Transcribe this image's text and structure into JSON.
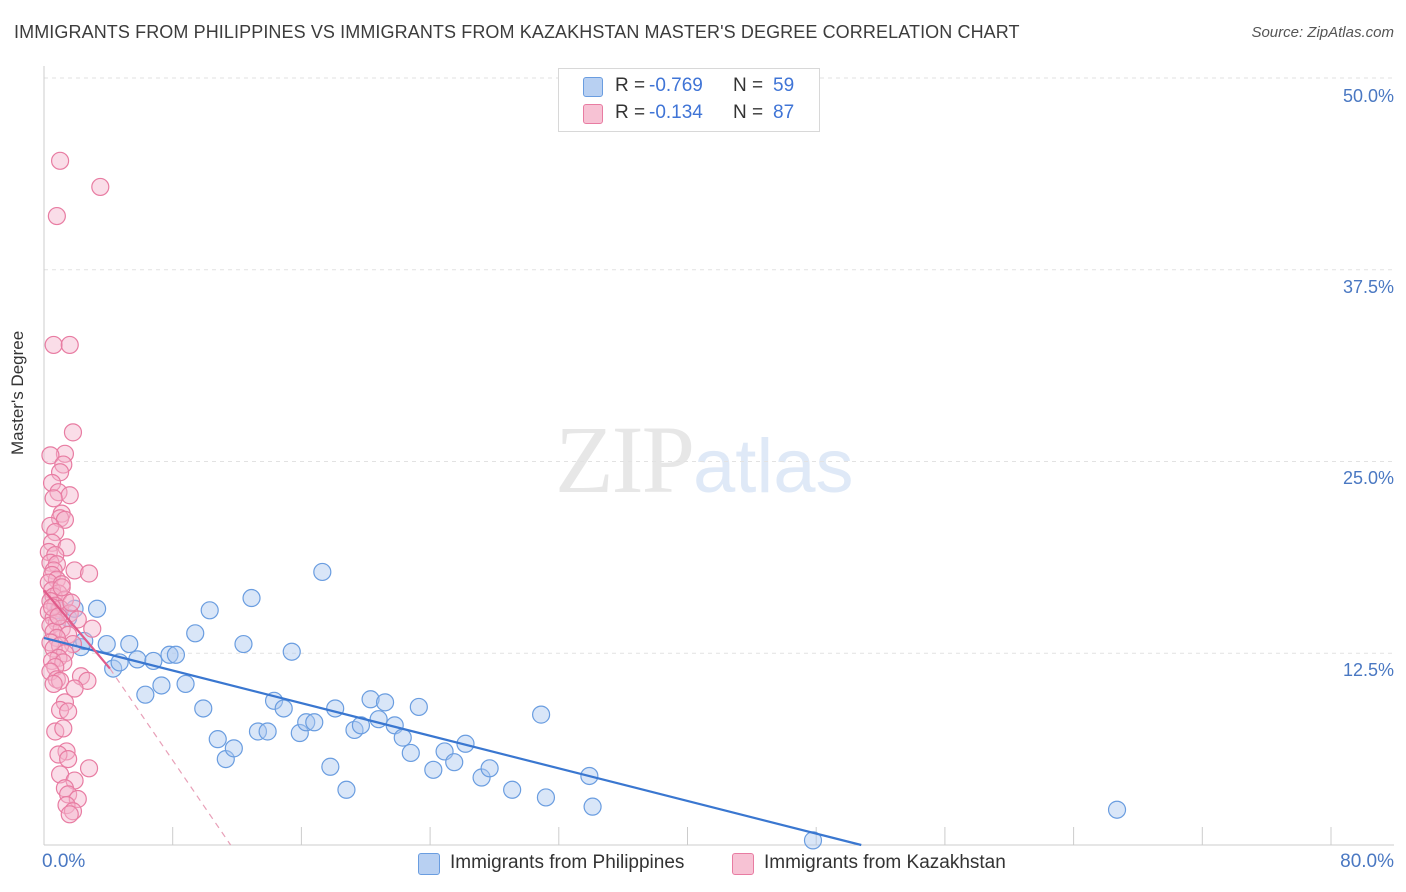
{
  "chart_data": {
    "type": "scatter",
    "title": "IMMIGRANTS FROM PHILIPPINES VS IMMIGRANTS FROM KAZAKHSTAN MASTER'S DEGREE CORRELATION CHART",
    "source": "Source: ZipAtlas.com",
    "xlabel": "",
    "ylabel": "Master's Degree",
    "xlim": [
      0,
      80
    ],
    "ylim": [
      0,
      50
    ],
    "x_tick_labels": [
      "0.0%",
      "80.0%"
    ],
    "y_ticks": [
      12.5,
      25.0,
      37.5,
      50.0
    ],
    "y_tick_labels": [
      "12.5%",
      "25.0%",
      "37.5%",
      "50.0%"
    ],
    "grid": true,
    "watermark": {
      "zip": "ZIP",
      "atlas": "atlas"
    },
    "legend": {
      "r_label": "R =",
      "n_label": "N =",
      "entries": [
        {
          "name": "Immigrants from Philippines",
          "r": "-0.769",
          "n": "59",
          "color": "#6a9de0",
          "fill": "#b8d0f2"
        },
        {
          "name": "Immigrants from Kazakhstan",
          "r": "-0.134",
          "n": "87",
          "color": "#e87ca2",
          "fill": "#f7c2d4"
        }
      ]
    },
    "series": [
      {
        "name": "Immigrants from Philippines",
        "color": "#6a9de0",
        "trend": {
          "x": [
            0.0,
            50.8
          ],
          "y": [
            13.5,
            0.0
          ],
          "color": "#3a77d0"
        },
        "points": [
          [
            0.9,
            15.3
          ],
          [
            1.5,
            14.8
          ],
          [
            1.9,
            15.4
          ],
          [
            2.3,
            12.9
          ],
          [
            3.3,
            15.4
          ],
          [
            3.9,
            13.1
          ],
          [
            4.3,
            11.5
          ],
          [
            4.7,
            11.9
          ],
          [
            5.3,
            13.1
          ],
          [
            5.8,
            12.1
          ],
          [
            6.3,
            9.8
          ],
          [
            6.8,
            12.0
          ],
          [
            7.3,
            10.4
          ],
          [
            7.8,
            12.4
          ],
          [
            8.2,
            12.4
          ],
          [
            8.8,
            10.5
          ],
          [
            9.4,
            13.8
          ],
          [
            9.9,
            8.9
          ],
          [
            10.3,
            15.3
          ],
          [
            10.8,
            6.9
          ],
          [
            11.3,
            5.6
          ],
          [
            11.8,
            6.3
          ],
          [
            12.4,
            13.1
          ],
          [
            12.9,
            16.1
          ],
          [
            13.3,
            7.4
          ],
          [
            13.9,
            7.4
          ],
          [
            14.3,
            9.4
          ],
          [
            14.9,
            8.9
          ],
          [
            15.4,
            12.6
          ],
          [
            15.9,
            7.3
          ],
          [
            16.3,
            8.0
          ],
          [
            16.8,
            8.0
          ],
          [
            17.3,
            17.8
          ],
          [
            17.8,
            5.1
          ],
          [
            18.1,
            8.9
          ],
          [
            18.8,
            3.6
          ],
          [
            19.3,
            7.5
          ],
          [
            19.7,
            7.8
          ],
          [
            20.3,
            9.5
          ],
          [
            20.8,
            8.2
          ],
          [
            21.2,
            9.3
          ],
          [
            21.8,
            7.8
          ],
          [
            22.3,
            7.0
          ],
          [
            22.8,
            6.0
          ],
          [
            23.3,
            9.0
          ],
          [
            24.2,
            4.9
          ],
          [
            24.9,
            6.1
          ],
          [
            25.5,
            5.4
          ],
          [
            26.2,
            6.6
          ],
          [
            27.2,
            4.4
          ],
          [
            27.7,
            5.0
          ],
          [
            29.1,
            3.6
          ],
          [
            30.9,
            8.5
          ],
          [
            31.2,
            3.1
          ],
          [
            33.9,
            4.5
          ],
          [
            34.1,
            2.5
          ],
          [
            47.8,
            0.3
          ],
          [
            66.7,
            2.3
          ],
          [
            2.5,
            13.3
          ]
        ]
      },
      {
        "name": "Immigrants from Kazakhstan",
        "color": "#e87ca2",
        "trend": {
          "x": [
            0.0,
            4.1
          ],
          "y": [
            16.6,
            11.5
          ],
          "color": "#e05b8a"
        },
        "trend_ext": {
          "x": [
            4.1,
            11.6
          ],
          "y": [
            11.5,
            0.0
          ],
          "color": "#e8a0b8"
        },
        "points": [
          [
            1.0,
            44.6
          ],
          [
            3.5,
            42.9
          ],
          [
            0.8,
            41.0
          ],
          [
            0.6,
            32.6
          ],
          [
            1.6,
            32.6
          ],
          [
            1.8,
            26.9
          ],
          [
            1.3,
            25.5
          ],
          [
            0.4,
            25.4
          ],
          [
            1.2,
            24.8
          ],
          [
            1.0,
            24.3
          ],
          [
            0.5,
            23.6
          ],
          [
            0.9,
            23.0
          ],
          [
            1.6,
            22.8
          ],
          [
            0.6,
            22.6
          ],
          [
            1.1,
            21.6
          ],
          [
            1.0,
            21.3
          ],
          [
            1.3,
            21.2
          ],
          [
            0.4,
            20.8
          ],
          [
            0.7,
            20.4
          ],
          [
            0.5,
            19.7
          ],
          [
            1.4,
            19.4
          ],
          [
            0.3,
            19.1
          ],
          [
            0.7,
            18.9
          ],
          [
            0.4,
            18.4
          ],
          [
            0.8,
            18.3
          ],
          [
            0.6,
            17.9
          ],
          [
            1.9,
            17.9
          ],
          [
            2.8,
            17.7
          ],
          [
            0.5,
            17.6
          ],
          [
            0.8,
            17.3
          ],
          [
            0.3,
            17.1
          ],
          [
            1.1,
            17.0
          ],
          [
            0.5,
            16.6
          ],
          [
            0.9,
            16.4
          ],
          [
            0.6,
            16.2
          ],
          [
            1.3,
            16.0
          ],
          [
            0.4,
            15.9
          ],
          [
            0.7,
            15.6
          ],
          [
            1.0,
            15.4
          ],
          [
            0.3,
            15.2
          ],
          [
            1.6,
            15.1
          ],
          [
            0.6,
            14.8
          ],
          [
            2.1,
            14.7
          ],
          [
            0.8,
            14.5
          ],
          [
            0.4,
            14.3
          ],
          [
            1.1,
            14.1
          ],
          [
            3.0,
            14.1
          ],
          [
            0.6,
            13.9
          ],
          [
            1.5,
            13.7
          ],
          [
            0.8,
            13.5
          ],
          [
            0.4,
            13.2
          ],
          [
            1.8,
            13.1
          ],
          [
            1.0,
            13.0
          ],
          [
            0.6,
            12.8
          ],
          [
            1.3,
            12.5
          ],
          [
            0.9,
            12.2
          ],
          [
            0.5,
            12.0
          ],
          [
            1.2,
            11.9
          ],
          [
            0.7,
            11.6
          ],
          [
            0.4,
            11.3
          ],
          [
            2.3,
            11.0
          ],
          [
            0.8,
            10.8
          ],
          [
            1.0,
            10.7
          ],
          [
            2.7,
            10.7
          ],
          [
            0.6,
            10.5
          ],
          [
            1.9,
            10.2
          ],
          [
            1.3,
            9.3
          ],
          [
            1.0,
            8.8
          ],
          [
            1.5,
            8.7
          ],
          [
            0.7,
            7.4
          ],
          [
            1.2,
            7.6
          ],
          [
            1.4,
            6.1
          ],
          [
            0.9,
            5.9
          ],
          [
            1.5,
            5.6
          ],
          [
            2.8,
            5.0
          ],
          [
            1.0,
            4.6
          ],
          [
            1.9,
            4.2
          ],
          [
            1.3,
            3.7
          ],
          [
            1.5,
            3.3
          ],
          [
            2.1,
            3.0
          ],
          [
            1.4,
            2.6
          ],
          [
            1.8,
            2.2
          ],
          [
            1.6,
            2.0
          ],
          [
            0.5,
            15.5
          ],
          [
            1.7,
            15.8
          ],
          [
            0.9,
            14.9
          ],
          [
            1.1,
            16.8
          ]
        ]
      }
    ]
  }
}
